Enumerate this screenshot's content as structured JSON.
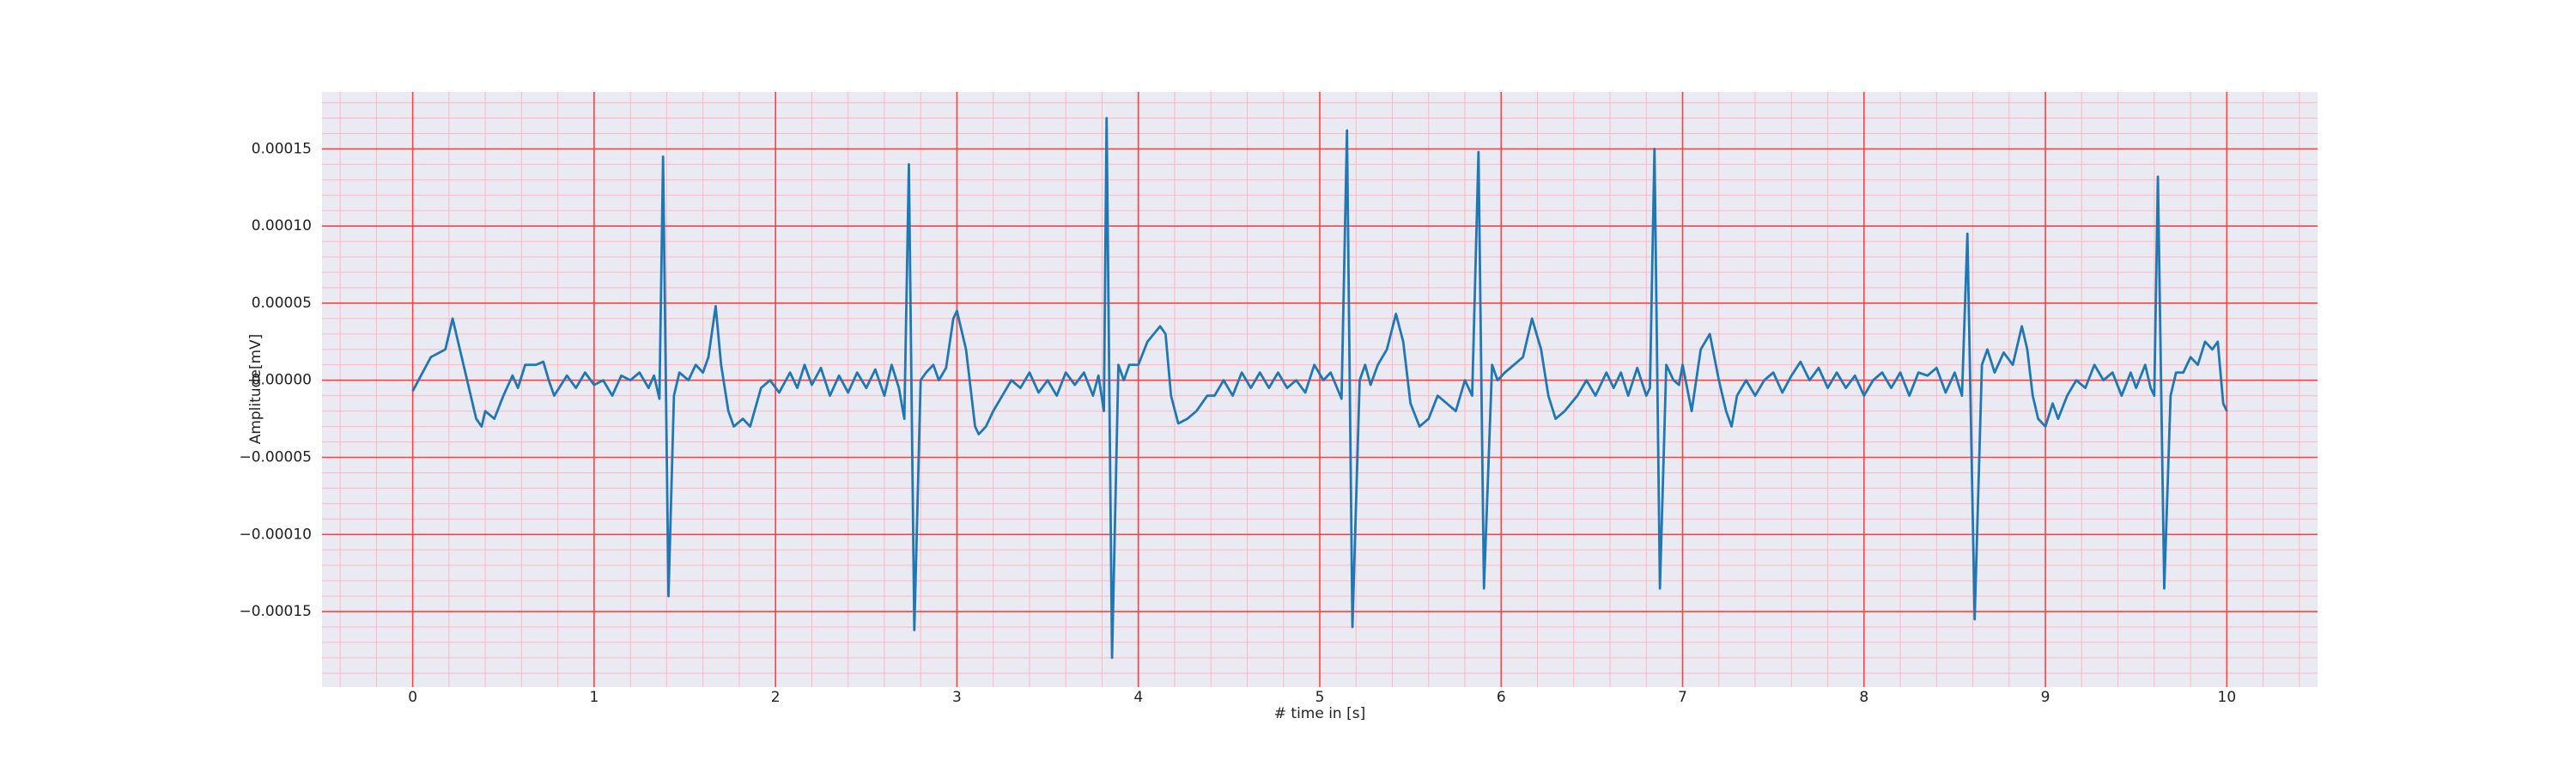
{
  "chart_data": {
    "type": "line",
    "xlabel": "# time in [s]",
    "ylabel": "Amplitude[mV]",
    "color": "#1f77b4",
    "background": "#eaeaf2",
    "grid": true,
    "major_grid_color": "#ff4040",
    "minor_grid_color": "#ffb6c1",
    "xlim": [
      -0.5,
      10.5
    ],
    "ylim": [
      -0.000199,
      0.000187
    ],
    "xticks": [
      0,
      1,
      2,
      3,
      4,
      5,
      6,
      7,
      8,
      9,
      10
    ],
    "yticks": [
      {
        "value": -0.00015,
        "label": "−0.00015"
      },
      {
        "value": -0.0001,
        "label": "−0.00010"
      },
      {
        "value": -5e-05,
        "label": "−0.00005"
      },
      {
        "value": 0,
        "label": "0.00000"
      },
      {
        "value": 5e-05,
        "label": "0.00005"
      },
      {
        "value": 0.0001,
        "label": "0.00010"
      },
      {
        "value": 0.00015,
        "label": "0.00015"
      }
    ],
    "xminorticks": [
      -0.4,
      -0.2,
      0.2,
      0.4,
      0.6,
      0.8,
      1.2,
      1.4,
      1.6,
      1.8,
      2.2,
      2.4,
      2.6,
      2.8,
      3.2,
      3.4,
      3.6,
      3.8,
      4.2,
      4.4,
      4.6,
      4.8,
      5.2,
      5.4,
      5.6,
      5.8,
      6.2,
      6.4,
      6.6,
      6.8,
      7.2,
      7.4,
      7.6,
      7.8,
      8.2,
      8.4,
      8.6,
      8.8,
      9.2,
      9.4,
      9.6,
      9.8,
      10.2,
      10.4
    ],
    "yminorticks": [
      -0.00019,
      -0.00018,
      -0.00017,
      -0.00016,
      -0.00014,
      -0.00013,
      -0.00012,
      -0.00011,
      -9e-05,
      -8e-05,
      -7e-05,
      -6e-05,
      -4e-05,
      -3e-05,
      -2e-05,
      -1e-05,
      1e-05,
      2e-05,
      3e-05,
      4e-05,
      6e-05,
      7e-05,
      8e-05,
      9e-05,
      0.00011,
      0.00012,
      0.00013,
      0.00014,
      0.00016,
      0.00017,
      0.00018
    ],
    "x": [
      0,
      0.1,
      0.18,
      0.22,
      0.35,
      0.38,
      0.4,
      0.45,
      0.5,
      0.55,
      0.58,
      0.62,
      0.68,
      0.72,
      0.75,
      0.78,
      0.85,
      0.9,
      0.95,
      1.0,
      1.05,
      1.1,
      1.15,
      1.2,
      1.25,
      1.3,
      1.33,
      1.36,
      1.38,
      1.41,
      1.44,
      1.47,
      1.52,
      1.56,
      1.6,
      1.63,
      1.67,
      1.7,
      1.74,
      1.77,
      1.82,
      1.86,
      1.92,
      1.97,
      2.02,
      2.08,
      2.12,
      2.16,
      2.2,
      2.25,
      2.3,
      2.35,
      2.4,
      2.45,
      2.5,
      2.55,
      2.6,
      2.64,
      2.68,
      2.71,
      2.735,
      2.765,
      2.8,
      2.83,
      2.87,
      2.9,
      2.94,
      2.98,
      3.0,
      3.05,
      3.1,
      3.12,
      3.16,
      3.2,
      3.25,
      3.3,
      3.35,
      3.4,
      3.45,
      3.5,
      3.55,
      3.6,
      3.65,
      3.7,
      3.75,
      3.78,
      3.81,
      3.825,
      3.855,
      3.89,
      3.92,
      3.95,
      4.0,
      4.05,
      4.12,
      4.15,
      4.18,
      4.22,
      4.27,
      4.32,
      4.38,
      4.42,
      4.47,
      4.52,
      4.57,
      4.62,
      4.67,
      4.72,
      4.77,
      4.82,
      4.87,
      4.92,
      4.97,
      5.02,
      5.06,
      5.12,
      5.15,
      5.18,
      5.22,
      5.25,
      5.28,
      5.32,
      5.37,
      5.42,
      5.46,
      5.5,
      5.55,
      5.6,
      5.65,
      5.7,
      5.75,
      5.8,
      5.84,
      5.875,
      5.905,
      5.95,
      5.98,
      6.02,
      6.07,
      6.12,
      6.17,
      6.22,
      6.26,
      6.3,
      6.35,
      6.42,
      6.47,
      6.52,
      6.58,
      6.62,
      6.66,
      6.7,
      6.75,
      6.8,
      6.82,
      6.845,
      6.875,
      6.91,
      6.95,
      6.98,
      7.0,
      7.05,
      7.1,
      7.15,
      7.2,
      7.24,
      7.27,
      7.3,
      7.35,
      7.4,
      7.45,
      7.5,
      7.55,
      7.6,
      7.65,
      7.7,
      7.75,
      7.8,
      7.85,
      7.9,
      7.95,
      8.0,
      8.05,
      8.1,
      8.15,
      8.2,
      8.25,
      8.3,
      8.35,
      8.4,
      8.45,
      8.5,
      8.54,
      8.57,
      8.61,
      8.65,
      8.68,
      8.72,
      8.77,
      8.82,
      8.87,
      8.9,
      8.93,
      8.96,
      9.0,
      9.04,
      9.07,
      9.12,
      9.17,
      9.22,
      9.27,
      9.32,
      9.37,
      9.42,
      9.47,
      9.5,
      9.55,
      9.58,
      9.6,
      9.62,
      9.655,
      9.69,
      9.72,
      9.76,
      9.8,
      9.84,
      9.88,
      9.92,
      9.95,
      9.98,
      10.0
    ],
    "values": [
      -7e-06,
      1.5e-05,
      2e-05,
      4e-05,
      -2.5e-05,
      -3e-05,
      -2e-05,
      -2.5e-05,
      -1e-05,
      3e-06,
      -5e-06,
      1e-05,
      1e-05,
      1.2e-05,
      0,
      -1e-05,
      3e-06,
      -5e-06,
      5e-06,
      -3e-06,
      0,
      -1e-05,
      3e-06,
      0,
      5e-06,
      -5e-06,
      3e-06,
      -1.2e-05,
      0.000145,
      -0.00014,
      -1e-05,
      5e-06,
      0,
      1e-05,
      5e-06,
      1.5e-05,
      4.8e-05,
      1e-05,
      -2e-05,
      -3e-05,
      -2.5e-05,
      -3e-05,
      -5e-06,
      0,
      -8e-06,
      5e-06,
      -5e-06,
      1e-05,
      -3e-06,
      8e-06,
      -1e-05,
      3e-06,
      -8e-06,
      5e-06,
      -5e-06,
      7e-06,
      -1e-05,
      1e-05,
      -5e-06,
      -2.5e-05,
      0.00014,
      -0.000162,
      0,
      5e-06,
      1e-05,
      0,
      8e-06,
      4e-05,
      4.5e-05,
      2e-05,
      -3e-05,
      -3.5e-05,
      -3e-05,
      -2e-05,
      -1e-05,
      0,
      -5e-06,
      5e-06,
      -8e-06,
      0,
      -1e-05,
      5e-06,
      -3e-06,
      5e-06,
      -1e-05,
      3e-06,
      -2e-05,
      0.00017,
      -0.00018,
      1e-05,
      0,
      1e-05,
      1e-05,
      2.5e-05,
      3.5e-05,
      3e-05,
      -1e-05,
      -2.8e-05,
      -2.5e-05,
      -2e-05,
      -1e-05,
      -1e-05,
      0,
      -1e-05,
      5e-06,
      -5e-06,
      5e-06,
      -5e-06,
      5e-06,
      -5e-06,
      0,
      -8e-06,
      1e-05,
      0,
      5e-06,
      -1.2e-05,
      0.000162,
      -0.00016,
      0,
      1e-05,
      -3e-06,
      1e-05,
      2e-05,
      4.3e-05,
      2.5e-05,
      -1.5e-05,
      -3e-05,
      -2.5e-05,
      -1e-05,
      -1.5e-05,
      -2e-05,
      0,
      -1e-05,
      0.000148,
      -0.000135,
      1e-05,
      0,
      5e-06,
      1e-05,
      1.5e-05,
      4e-05,
      2e-05,
      -1e-05,
      -2.5e-05,
      -2e-05,
      -1e-05,
      0,
      -1e-05,
      5e-06,
      -5e-06,
      5e-06,
      -1e-05,
      8e-06,
      -1e-05,
      -5e-06,
      0.00015,
      -0.000135,
      1e-05,
      0,
      -3e-06,
      1e-05,
      -2e-05,
      2e-05,
      3e-05,
      0,
      -2e-05,
      -3e-05,
      -1e-05,
      0,
      -1e-05,
      0,
      5e-06,
      -8e-06,
      3e-06,
      1.2e-05,
      0,
      8e-06,
      -5e-06,
      5e-06,
      -5e-06,
      3e-06,
      -1e-05,
      0,
      5e-06,
      -5e-06,
      5e-06,
      -1e-05,
      5e-06,
      3e-06,
      8e-06,
      -8e-06,
      5e-06,
      -1e-05,
      9.5e-05,
      -0.000155,
      1e-05,
      2e-05,
      5e-06,
      1.8e-05,
      1e-05,
      3.5e-05,
      2e-05,
      -1e-05,
      -2.5e-05,
      -3e-05,
      -1.5e-05,
      -2.5e-05,
      -1e-05,
      0,
      -5e-06,
      1e-05,
      0,
      5e-06,
      -1e-05,
      5e-06,
      -5e-06,
      1e-05,
      -5e-06,
      -1e-05,
      0.000132,
      -0.000135,
      -1e-05,
      5e-06,
      5e-06,
      1.5e-05,
      1e-05,
      2.5e-05,
      2e-05,
      2.5e-05,
      -1.5e-05,
      -2e-05
    ]
  }
}
